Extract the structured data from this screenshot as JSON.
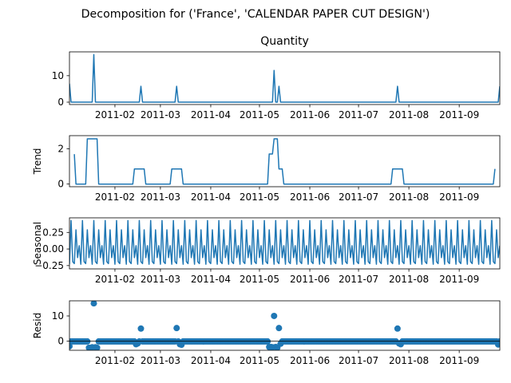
{
  "figure": {
    "suptitle": "Decomposition for ('France', 'CALENDAR PAPER CUT DESIGN')"
  },
  "x_tick_labels": [
    "2011-02",
    "2011-03",
    "2011-04",
    "2011-05",
    "2011-06",
    "2011-07",
    "2011-08",
    "2011-09"
  ],
  "chart_data": [
    {
      "id": "observed",
      "type": "line",
      "title": "Quantity",
      "ylabel": "",
      "xlim": [
        "2011-01-04",
        "2011-09-26"
      ],
      "ylim": [
        -0.9,
        19
      ],
      "yticks": [
        0,
        10
      ],
      "points": [
        [
          "2011-01-04",
          7
        ],
        [
          "2011-01-05",
          0
        ],
        [
          "2011-01-18",
          0
        ],
        [
          "2011-01-19",
          18
        ],
        [
          "2011-01-20",
          0
        ],
        [
          "2011-02-16",
          0
        ],
        [
          "2011-02-17",
          6
        ],
        [
          "2011-02-18",
          0
        ],
        [
          "2011-03-10",
          0
        ],
        [
          "2011-03-11",
          6
        ],
        [
          "2011-03-12",
          0
        ],
        [
          "2011-05-09",
          0
        ],
        [
          "2011-05-10",
          12
        ],
        [
          "2011-05-11",
          0
        ],
        [
          "2011-05-12",
          0
        ],
        [
          "2011-05-13",
          6
        ],
        [
          "2011-05-14",
          0
        ],
        [
          "2011-07-24",
          0
        ],
        [
          "2011-07-25",
          6
        ],
        [
          "2011-07-26",
          0
        ],
        [
          "2011-09-25",
          0
        ],
        [
          "2011-09-26",
          6
        ]
      ]
    },
    {
      "id": "trend",
      "type": "line",
      "title": "",
      "ylabel": "Trend",
      "xlim": [
        "2011-01-04",
        "2011-09-26"
      ],
      "ylim": [
        -0.15,
        2.75
      ],
      "yticks": [
        0,
        2
      ],
      "points": [
        [
          "2011-01-07",
          1.7
        ],
        [
          "2011-01-08",
          0
        ],
        [
          "2011-01-14",
          0
        ],
        [
          "2011-01-15",
          2.57
        ],
        [
          "2011-01-21",
          2.57
        ],
        [
          "2011-01-22",
          0
        ],
        [
          "2011-02-12",
          0
        ],
        [
          "2011-02-13",
          0.86
        ],
        [
          "2011-02-19",
          0.86
        ],
        [
          "2011-02-20",
          0
        ],
        [
          "2011-03-07",
          0
        ],
        [
          "2011-03-08",
          0.86
        ],
        [
          "2011-03-14",
          0.86
        ],
        [
          "2011-03-15",
          0
        ],
        [
          "2011-05-06",
          0
        ],
        [
          "2011-05-07",
          1.71
        ],
        [
          "2011-05-09",
          1.71
        ],
        [
          "2011-05-10",
          2.57
        ],
        [
          "2011-05-12",
          2.57
        ],
        [
          "2011-05-13",
          0.86
        ],
        [
          "2011-05-15",
          0.86
        ],
        [
          "2011-05-16",
          0
        ],
        [
          "2011-07-21",
          0
        ],
        [
          "2011-07-22",
          0.86
        ],
        [
          "2011-07-28",
          0.86
        ],
        [
          "2011-07-29",
          0
        ],
        [
          "2011-09-22",
          0
        ],
        [
          "2011-09-23",
          0.86
        ]
      ]
    },
    {
      "id": "seasonal",
      "type": "line",
      "title": "",
      "ylabel": "Seasonal",
      "xlim": [
        "2011-01-04",
        "2011-09-26"
      ],
      "ylim": [
        -0.3,
        0.47
      ],
      "yticks": [
        0.25,
        0.0,
        -0.25
      ],
      "ytick_labels": [
        "0.25",
        "0.00",
        "−0.25"
      ],
      "weekly_pattern": [
        -0.23,
        0.43,
        -0.19,
        -0.22,
        0.29,
        -0.13,
        0.05
      ]
    },
    {
      "id": "resid",
      "type": "scatter",
      "title": "",
      "ylabel": "Resid",
      "xlim": [
        "2011-01-04",
        "2011-09-26"
      ],
      "ylim": [
        -3.6,
        16
      ],
      "yticks": [
        0,
        10
      ],
      "baseline": 0,
      "outliers": [
        [
          "2011-01-04",
          -2.0
        ],
        [
          "2011-01-16",
          -2.6
        ],
        [
          "2011-01-17",
          -2.6
        ],
        [
          "2011-01-18",
          -2.4
        ],
        [
          "2011-01-19",
          15.0
        ],
        [
          "2011-01-20",
          -2.4
        ],
        [
          "2011-01-21",
          -2.6
        ],
        [
          "2011-02-14",
          -1.2
        ],
        [
          "2011-02-15",
          -0.9
        ],
        [
          "2011-02-17",
          5.0
        ],
        [
          "2011-03-11",
          5.2
        ],
        [
          "2011-03-13",
          -1.2
        ],
        [
          "2011-03-14",
          -1.4
        ],
        [
          "2011-05-07",
          -2.3
        ],
        [
          "2011-05-08",
          -2.3
        ],
        [
          "2011-05-09",
          -2.4
        ],
        [
          "2011-05-10",
          10.0
        ],
        [
          "2011-05-11",
          -2.3
        ],
        [
          "2011-05-12",
          -2.6
        ],
        [
          "2011-05-13",
          5.2
        ],
        [
          "2011-05-14",
          -1.0
        ],
        [
          "2011-07-25",
          5.0
        ],
        [
          "2011-07-26",
          -0.9
        ],
        [
          "2011-07-27",
          -1.2
        ],
        [
          "2011-09-25",
          -1.3
        ]
      ]
    }
  ]
}
